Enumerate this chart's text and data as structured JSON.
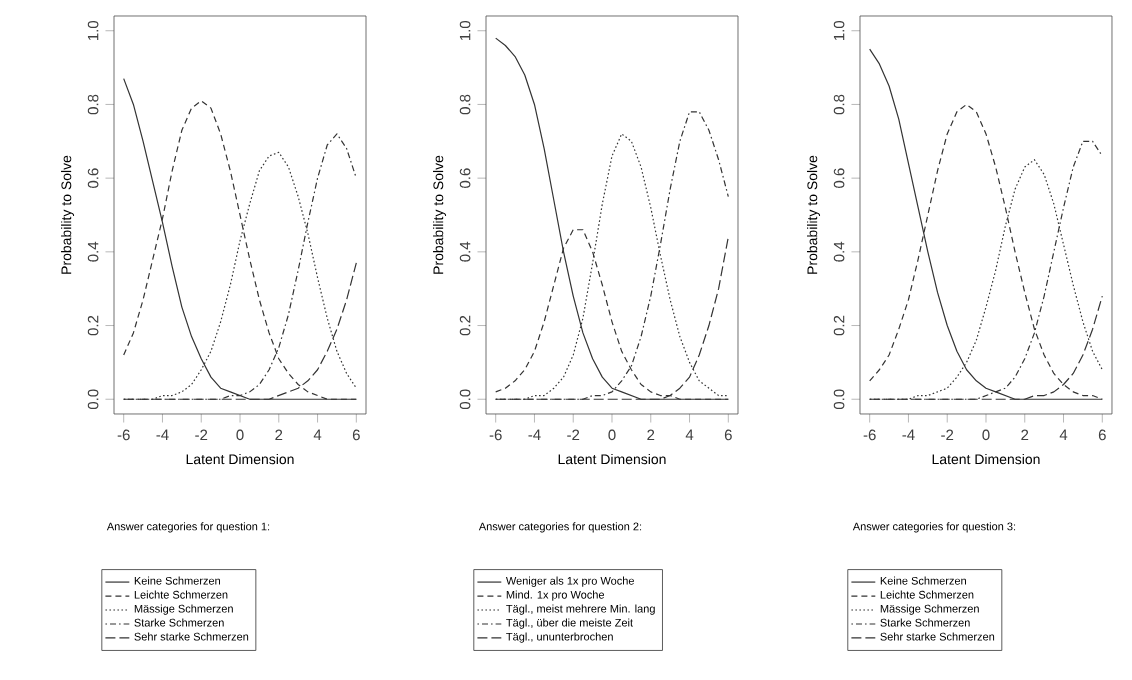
{
  "chart_data": [
    {
      "type": "line",
      "xlabel": "Latent Dimension",
      "ylabel": "Probability to Solve",
      "legend_title": "Answer categories for question 1:",
      "legend": "bottom",
      "x": [
        -6,
        -5.5,
        -5,
        -4.5,
        -4,
        -3.5,
        -3,
        -2.5,
        -2,
        -1.5,
        -1,
        -0.5,
        0,
        0.5,
        1,
        1.5,
        2,
        2.5,
        3,
        3.5,
        4,
        4.5,
        5,
        5.5,
        6
      ],
      "xlim": [
        -6.5,
        6.5
      ],
      "ylim": [
        -0.04,
        1.04
      ],
      "xticks": [
        -6,
        -4,
        -2,
        0,
        2,
        4,
        6
      ],
      "yticks": [
        {
          "value": 0,
          "label": "0.0"
        },
        {
          "value": 0.2,
          "label": "0.2"
        },
        {
          "value": 0.4,
          "label": "0.4"
        },
        {
          "value": 0.6,
          "label": "0.6"
        },
        {
          "value": 0.8,
          "label": "0.8"
        },
        {
          "value": 1,
          "label": "1.0"
        }
      ],
      "series": [
        {
          "name": "Keine Schmerzen",
          "color": "#333333",
          "line_style": "solid",
          "values": [
            0.87,
            0.8,
            0.7,
            0.59,
            0.48,
            0.36,
            0.25,
            0.17,
            0.11,
            0.06,
            0.03,
            0.02,
            0.01,
            0,
            0,
            0,
            0,
            0,
            0,
            0,
            0,
            0,
            0,
            0,
            0
          ]
        },
        {
          "name": "Leichte Schmerzen",
          "color": "#333333",
          "line_style": "dashed",
          "values": [
            0.12,
            0.18,
            0.27,
            0.38,
            0.49,
            0.62,
            0.73,
            0.79,
            0.81,
            0.79,
            0.72,
            0.62,
            0.5,
            0.38,
            0.27,
            0.18,
            0.11,
            0.07,
            0.04,
            0.02,
            0.01,
            0,
            0,
            0,
            0
          ]
        },
        {
          "name": "Mässige Schmerzen",
          "color": "#333333",
          "line_style": "dotted",
          "values": [
            0,
            0,
            0,
            0,
            0.01,
            0.01,
            0.02,
            0.04,
            0.08,
            0.13,
            0.21,
            0.31,
            0.43,
            0.53,
            0.62,
            0.66,
            0.67,
            0.63,
            0.55,
            0.45,
            0.33,
            0.22,
            0.13,
            0.07,
            0.03
          ]
        },
        {
          "name": "Starke Schmerzen",
          "color": "#333333",
          "line_style": "dashdot",
          "values": [
            0,
            0,
            0,
            0,
            0,
            0,
            0,
            0,
            0,
            0,
            0,
            0.01,
            0.01,
            0.02,
            0.04,
            0.08,
            0.14,
            0.23,
            0.35,
            0.48,
            0.6,
            0.69,
            0.72,
            0.68,
            0.6
          ]
        },
        {
          "name": "Sehr starke Schmerzen",
          "color": "#333333",
          "line_style": "longdash",
          "values": [
            0,
            0,
            0,
            0,
            0,
            0,
            0,
            0,
            0,
            0,
            0,
            0,
            0,
            0,
            0,
            0,
            0.01,
            0.02,
            0.03,
            0.05,
            0.08,
            0.13,
            0.19,
            0.27,
            0.37
          ]
        }
      ]
    },
    {
      "type": "line",
      "xlabel": "Latent Dimension",
      "ylabel": "Probability to Solve",
      "legend_title": "Answer categories for question 2:",
      "legend": "bottom",
      "x": [
        -6,
        -5.5,
        -5,
        -4.5,
        -4,
        -3.5,
        -3,
        -2.5,
        -2,
        -1.5,
        -1,
        -0.5,
        0,
        0.5,
        1,
        1.5,
        2,
        2.5,
        3,
        3.5,
        4,
        4.5,
        5,
        5.5,
        6
      ],
      "xlim": [
        -6.5,
        6.5
      ],
      "ylim": [
        -0.04,
        1.04
      ],
      "xticks": [
        -6,
        -4,
        -2,
        0,
        2,
        4,
        6
      ],
      "yticks": [
        {
          "value": 0,
          "label": "0.0"
        },
        {
          "value": 0.2,
          "label": "0.2"
        },
        {
          "value": 0.4,
          "label": "0.4"
        },
        {
          "value": 0.6,
          "label": "0.6"
        },
        {
          "value": 0.8,
          "label": "0.8"
        },
        {
          "value": 1,
          "label": "1.0"
        }
      ],
      "series": [
        {
          "name": "Weniger als 1x pro Woche",
          "color": "#333333",
          "line_style": "solid",
          "values": [
            0.98,
            0.96,
            0.93,
            0.88,
            0.8,
            0.68,
            0.54,
            0.4,
            0.28,
            0.18,
            0.11,
            0.06,
            0.03,
            0.02,
            0.01,
            0,
            0,
            0,
            0,
            0,
            0,
            0,
            0,
            0,
            0
          ]
        },
        {
          "name": "Mind. 1x pro Woche",
          "color": "#333333",
          "line_style": "dashed",
          "values": [
            0.02,
            0.03,
            0.05,
            0.08,
            0.13,
            0.21,
            0.31,
            0.41,
            0.46,
            0.46,
            0.4,
            0.31,
            0.21,
            0.13,
            0.08,
            0.04,
            0.02,
            0.01,
            0.01,
            0,
            0,
            0,
            0,
            0,
            0
          ]
        },
        {
          "name": "Tägl., meist mehrere Min. lang",
          "color": "#333333",
          "line_style": "dotted",
          "values": [
            0,
            0,
            0,
            0,
            0.01,
            0.01,
            0.03,
            0.06,
            0.12,
            0.22,
            0.37,
            0.53,
            0.66,
            0.72,
            0.7,
            0.63,
            0.52,
            0.39,
            0.27,
            0.17,
            0.1,
            0.05,
            0.03,
            0.01,
            0.01
          ]
        },
        {
          "name": "Tägl., über die meiste Zeit",
          "color": "#333333",
          "line_style": "dashdot",
          "values": [
            0,
            0,
            0,
            0,
            0,
            0,
            0,
            0,
            0,
            0,
            0.01,
            0.01,
            0.02,
            0.05,
            0.09,
            0.17,
            0.28,
            0.42,
            0.57,
            0.7,
            0.78,
            0.78,
            0.73,
            0.65,
            0.55
          ]
        },
        {
          "name": "Tägl., ununterbrochen",
          "color": "#333333",
          "line_style": "longdash",
          "values": [
            0,
            0,
            0,
            0,
            0,
            0,
            0,
            0,
            0,
            0,
            0,
            0,
            0,
            0,
            0,
            0,
            0,
            0,
            0.01,
            0.03,
            0.06,
            0.12,
            0.2,
            0.3,
            0.44
          ]
        }
      ]
    },
    {
      "type": "line",
      "xlabel": "Latent Dimension",
      "ylabel": "Probability to Solve",
      "legend_title": "Answer categories for question 3:",
      "legend": "bottom",
      "x": [
        -6,
        -5.5,
        -5,
        -4.5,
        -4,
        -3.5,
        -3,
        -2.5,
        -2,
        -1.5,
        -1,
        -0.5,
        0,
        0.5,
        1,
        1.5,
        2,
        2.5,
        3,
        3.5,
        4,
        4.5,
        5,
        5.5,
        6
      ],
      "xlim": [
        -6.5,
        6.5
      ],
      "ylim": [
        -0.04,
        1.04
      ],
      "xticks": [
        -6,
        -4,
        -2,
        0,
        2,
        4,
        6
      ],
      "yticks": [
        {
          "value": 0,
          "label": "0.0"
        },
        {
          "value": 0.2,
          "label": "0.2"
        },
        {
          "value": 0.4,
          "label": "0.4"
        },
        {
          "value": 0.6,
          "label": "0.6"
        },
        {
          "value": 0.8,
          "label": "0.8"
        },
        {
          "value": 1,
          "label": "1.0"
        }
      ],
      "series": [
        {
          "name": "Keine Schmerzen",
          "color": "#333333",
          "line_style": "solid",
          "values": [
            0.95,
            0.91,
            0.85,
            0.76,
            0.64,
            0.52,
            0.4,
            0.29,
            0.2,
            0.13,
            0.08,
            0.05,
            0.03,
            0.02,
            0.01,
            0,
            0,
            0,
            0,
            0,
            0,
            0,
            0,
            0,
            0
          ]
        },
        {
          "name": "Leichte Schmerzen",
          "color": "#333333",
          "line_style": "dashed",
          "values": [
            0.05,
            0.08,
            0.12,
            0.19,
            0.27,
            0.38,
            0.5,
            0.62,
            0.72,
            0.78,
            0.8,
            0.78,
            0.72,
            0.63,
            0.52,
            0.4,
            0.29,
            0.19,
            0.12,
            0.07,
            0.04,
            0.02,
            0.01,
            0.01,
            0
          ]
        },
        {
          "name": "Mässige Schmerzen",
          "color": "#333333",
          "line_style": "dotted",
          "values": [
            0,
            0,
            0,
            0,
            0,
            0.01,
            0.01,
            0.02,
            0.03,
            0.06,
            0.1,
            0.16,
            0.25,
            0.35,
            0.47,
            0.57,
            0.63,
            0.65,
            0.61,
            0.53,
            0.42,
            0.31,
            0.21,
            0.13,
            0.08
          ]
        },
        {
          "name": "Starke Schmerzen",
          "color": "#333333",
          "line_style": "dashdot",
          "values": [
            0,
            0,
            0,
            0,
            0,
            0,
            0,
            0,
            0,
            0,
            0,
            0,
            0.01,
            0.02,
            0.03,
            0.06,
            0.11,
            0.18,
            0.28,
            0.4,
            0.52,
            0.63,
            0.7,
            0.7,
            0.66
          ]
        },
        {
          "name": "Sehr starke Schmerzen",
          "color": "#333333",
          "line_style": "longdash",
          "values": [
            0,
            0,
            0,
            0,
            0,
            0,
            0,
            0,
            0,
            0,
            0,
            0,
            0,
            0,
            0,
            0,
            0,
            0.01,
            0.01,
            0.02,
            0.04,
            0.07,
            0.12,
            0.19,
            0.28
          ]
        }
      ]
    }
  ]
}
